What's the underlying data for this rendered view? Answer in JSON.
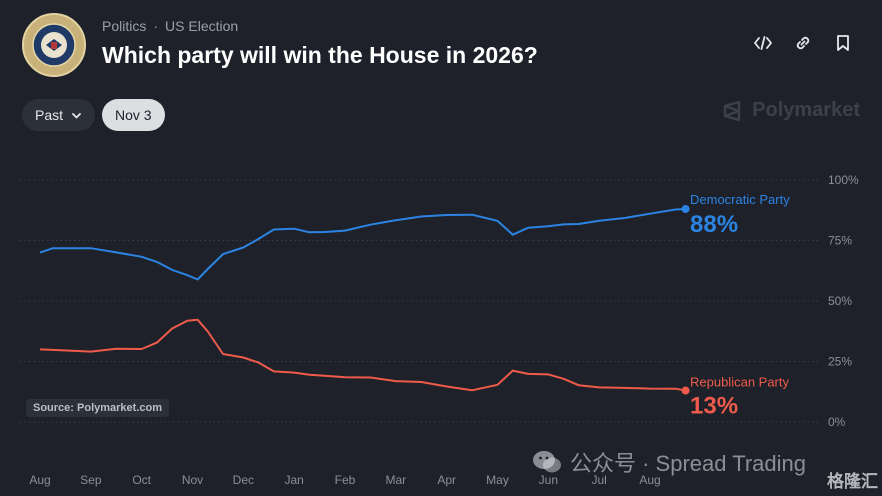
{
  "header": {
    "breadcrumb": [
      "Politics",
      "US Election"
    ],
    "title": "Which party will win the House in 2026?"
  },
  "controls": {
    "range_label": "Past",
    "date_label": "Nov 3"
  },
  "brand": {
    "name": "Polymarket"
  },
  "source": "Source: Polymarket.com",
  "watermark": {
    "text": "公众号 · Spread Trading",
    "corner": "格隆汇"
  },
  "colors": {
    "background": "#1e2129",
    "democratic": "#2b84e3",
    "republican": "#ef5b4b",
    "axis_text": "#8a8f99"
  },
  "icons": [
    "embed-code-icon",
    "link-icon",
    "bookmark-icon",
    "chevron-down-icon",
    "polymarket-logo-icon",
    "wechat-icon",
    "house-seal-icon"
  ],
  "chart_data": {
    "type": "line",
    "x_labels": [
      "Aug",
      "Sep",
      "Oct",
      "Nov",
      "Dec",
      "Jan",
      "Feb",
      "Mar",
      "Apr",
      "May",
      "Jun",
      "Jul",
      "Aug"
    ],
    "y_ticks": [
      "100%",
      "75%",
      "50%",
      "25%",
      "0%"
    ],
    "ylim": [
      0,
      100
    ],
    "grid": true,
    "legend_position": "end-of-line labels at right",
    "series": [
      {
        "name": "Democratic Party",
        "current_label": "88%",
        "color": "#2b84e3",
        "points": [
          [
            0,
            70
          ],
          [
            0.25,
            71
          ],
          [
            1,
            71
          ],
          [
            1.5,
            70
          ],
          [
            2,
            69
          ],
          [
            2.3,
            67
          ],
          [
            2.6,
            63
          ],
          [
            2.9,
            60
          ],
          [
            3.1,
            58
          ],
          [
            3.3,
            63
          ],
          [
            3.6,
            70
          ],
          [
            4,
            73
          ],
          [
            4.3,
            76
          ],
          [
            4.6,
            79
          ],
          [
            5,
            79
          ],
          [
            5.3,
            78
          ],
          [
            5.6,
            79
          ],
          [
            6,
            80
          ],
          [
            6.5,
            82
          ],
          [
            7,
            83
          ],
          [
            7.5,
            84
          ],
          [
            8,
            85
          ],
          [
            8.5,
            86
          ],
          [
            9,
            84
          ],
          [
            9.3,
            78
          ],
          [
            9.6,
            80
          ],
          [
            10,
            80
          ],
          [
            10.3,
            81
          ],
          [
            10.6,
            82
          ],
          [
            11,
            84
          ],
          [
            11.5,
            85
          ],
          [
            12,
            86
          ],
          [
            12.5,
            87
          ],
          [
            12.7,
            88
          ]
        ]
      },
      {
        "name": "Republican Party",
        "current_label": "13%",
        "color": "#ef5b4b",
        "points": [
          [
            0,
            30
          ],
          [
            0.25,
            29
          ],
          [
            1,
            29
          ],
          [
            1.5,
            31
          ],
          [
            2,
            31
          ],
          [
            2.3,
            33
          ],
          [
            2.6,
            38
          ],
          [
            2.9,
            41
          ],
          [
            3.1,
            42
          ],
          [
            3.3,
            38
          ],
          [
            3.6,
            29
          ],
          [
            4,
            27
          ],
          [
            4.3,
            24
          ],
          [
            4.6,
            20
          ],
          [
            5,
            20
          ],
          [
            5.3,
            20
          ],
          [
            5.6,
            20
          ],
          [
            6,
            19
          ],
          [
            6.5,
            18
          ],
          [
            7,
            16
          ],
          [
            7.5,
            16
          ],
          [
            8,
            15
          ],
          [
            8.5,
            14
          ],
          [
            9,
            16
          ],
          [
            9.3,
            21
          ],
          [
            9.6,
            19
          ],
          [
            10,
            19
          ],
          [
            10.3,
            18
          ],
          [
            10.6,
            16
          ],
          [
            11,
            15
          ],
          [
            11.5,
            14
          ],
          [
            12,
            13
          ],
          [
            12.5,
            13
          ],
          [
            12.7,
            13
          ]
        ]
      }
    ]
  }
}
